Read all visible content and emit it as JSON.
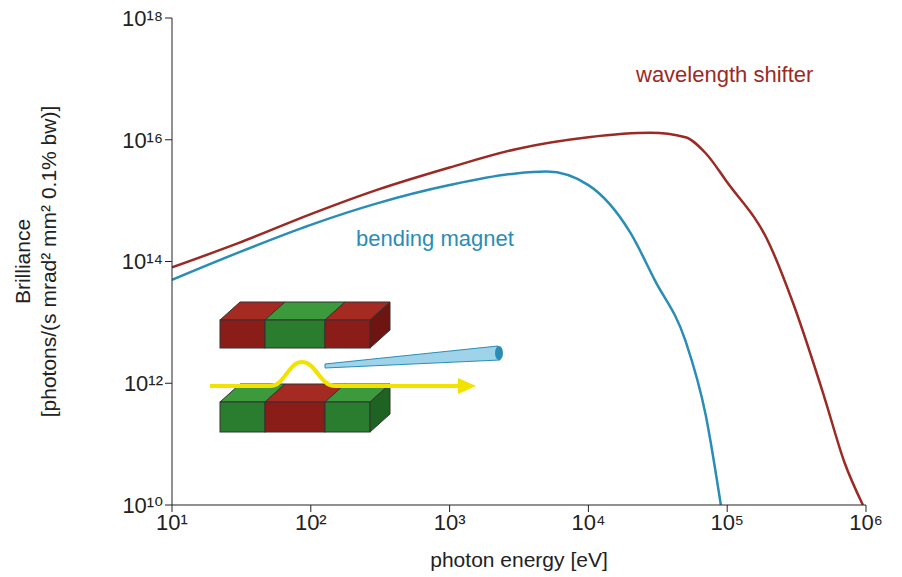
{
  "chart_data": {
    "type": "line",
    "log": true,
    "xlabel": "photon energy [eV]",
    "ylabel": "Brilliance [photons/(s mrad² mm² 0.1% bw)]",
    "xlim": [
      10,
      1000000
    ],
    "ylim": [
      10000000000.0,
      1e+18
    ],
    "xticks": [
      {
        "value": 10,
        "label": "10¹"
      },
      {
        "value": 100,
        "label": "10²"
      },
      {
        "value": 1000,
        "label": "10³"
      },
      {
        "value": 10000,
        "label": "10⁴"
      },
      {
        "value": 100000,
        "label": "10⁵"
      },
      {
        "value": 1000000,
        "label": "10⁶"
      }
    ],
    "yticks": [
      {
        "value": 10000000000.0,
        "label": "10¹⁰"
      },
      {
        "value": 1000000000000.0,
        "label": "10¹²"
      },
      {
        "value": 100000000000000.0,
        "label": "10¹⁴"
      },
      {
        "value": 1e+16,
        "label": "10¹⁶"
      },
      {
        "value": 1e+18,
        "label": "10¹⁸"
      }
    ],
    "series": [
      {
        "name": "wavelength shifter",
        "color": "#9b2a24",
        "x": [
          10,
          30,
          100,
          300,
          1000,
          3000,
          10000,
          28000,
          50000,
          70000,
          100000,
          200000,
          300000,
          500000,
          700000,
          950000
        ],
        "values": [
          80000000000000.0,
          200000000000000.0,
          600000000000000.0,
          1500000000000000.0,
          3500000000000000.0,
          7000000000000000.0,
          1.1e+16,
          1.3e+16,
          1.1e+16,
          6000000000000000.0,
          2000000000000000.0,
          200000000000000.0,
          20000000000000.0,
          600000000000.0,
          50000000000.0,
          10000000000.0
        ]
      },
      {
        "name": "bending magnet",
        "color": "#2a8db5",
        "x": [
          10,
          30,
          100,
          300,
          1000,
          3000,
          5000,
          10000,
          20000,
          30000,
          50000,
          70000,
          90000
        ],
        "values": [
          50000000000000.0,
          140000000000000.0,
          400000000000000.0,
          900000000000000.0,
          1800000000000000.0,
          2800000000000000.0,
          3000000000000000.0,
          1800000000000000.0,
          300000000000000.0,
          50000000000000.0,
          5000000000000.0,
          300000000000.0,
          10000000000.0
        ]
      }
    ]
  }
}
